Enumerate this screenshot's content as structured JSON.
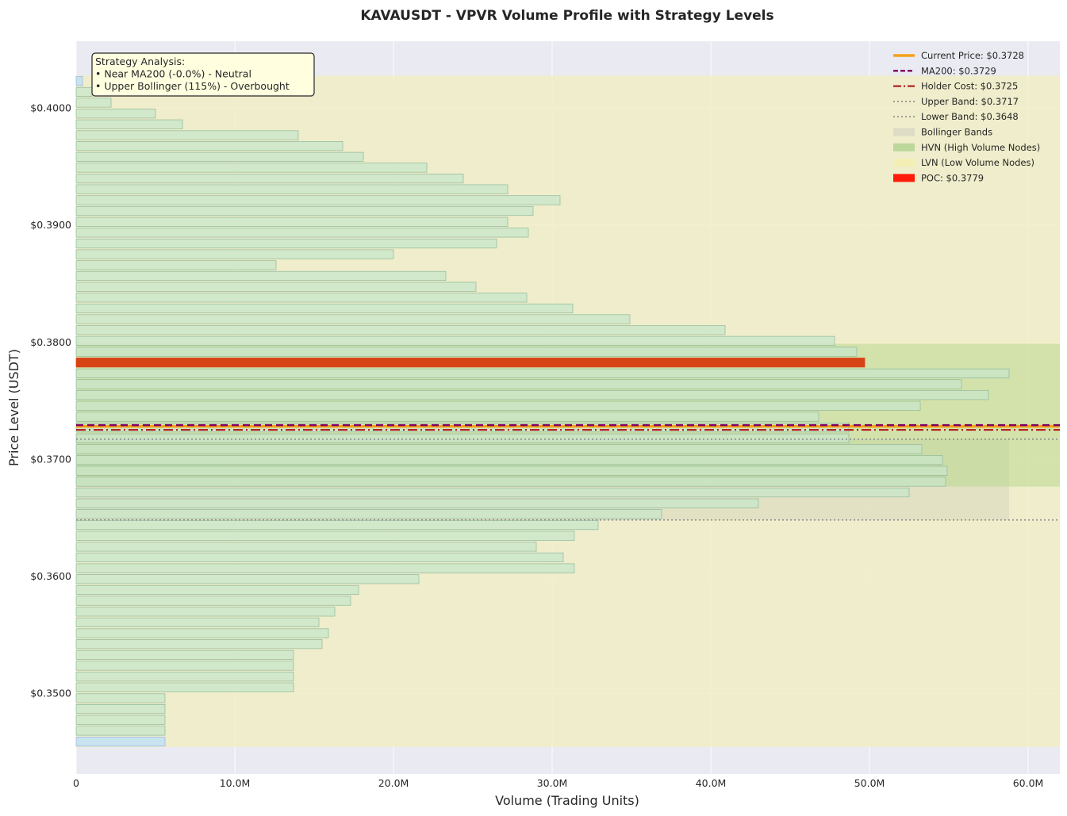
{
  "chart_data": {
    "type": "bar",
    "orientation": "horizontal",
    "title": "KAVAUSDT - VPVR Volume Profile with Strategy Levels",
    "xlabel": "Volume (Trading Units)",
    "ylabel": "Price Level (USDT)",
    "xlim": [
      0,
      62000000
    ],
    "ylim": [
      0.3431,
      0.4057
    ],
    "x_ticks": [
      0,
      10000000,
      20000000,
      30000000,
      40000000,
      50000000,
      60000000
    ],
    "x_tick_labels": [
      "0",
      "10.0M",
      "20.0M",
      "30.0M",
      "40.0M",
      "50.0M",
      "60.0M"
    ],
    "y_ticks": [
      0.35,
      0.36,
      0.37,
      0.38,
      0.39,
      0.4
    ],
    "y_tick_labels": [
      "$0.3500",
      "$0.3600",
      "$0.3700",
      "$0.3800",
      "$0.3900",
      "$0.4000"
    ],
    "grid": true,
    "legend_position": "top-right",
    "bin_height": 0.000925,
    "price_levels": [
      0.34587,
      0.3468,
      0.34772,
      0.34865,
      0.34957,
      0.3505,
      0.35142,
      0.35235,
      0.35327,
      0.3542,
      0.35512,
      0.35605,
      0.35697,
      0.3579,
      0.35882,
      0.35975,
      0.36067,
      0.3616,
      0.36252,
      0.36345,
      0.36437,
      0.3653,
      0.36622,
      0.36715,
      0.36807,
      0.369,
      0.36992,
      0.37085,
      0.37177,
      0.3727,
      0.37362,
      0.37455,
      0.37547,
      0.3764,
      0.37732,
      0.37825,
      0.37917,
      0.3801,
      0.38102,
      0.38195,
      0.38287,
      0.3838,
      0.38472,
      0.38565,
      0.38657,
      0.3875,
      0.38842,
      0.38935,
      0.39027,
      0.3912,
      0.39212,
      0.39305,
      0.39397,
      0.3949,
      0.39582,
      0.39675,
      0.39767,
      0.3986,
      0.39952,
      0.40045,
      0.40137,
      0.4023
    ],
    "volumes": [
      5600000,
      5600000,
      5600000,
      5600000,
      5600000,
      13700000,
      13700000,
      13700000,
      13700000,
      15500000,
      15900000,
      15300000,
      16300000,
      17300000,
      17800000,
      21600000,
      31400000,
      30700000,
      29000000,
      31400000,
      32900000,
      36900000,
      43000000,
      52500000,
      54800000,
      54900000,
      54600000,
      53300000,
      48700000,
      48700000,
      46800000,
      53200000,
      57500000,
      55800000,
      58800000,
      49700000,
      49200000,
      47800000,
      40900000,
      34900000,
      31300000,
      28400000,
      25200000,
      23300000,
      12600000,
      20000000,
      26500000,
      28500000,
      27200000,
      28800000,
      30500000,
      27200000,
      24400000,
      22100000,
      18100000,
      16800000,
      14000000,
      6700000,
      5000000,
      2200000,
      1000000,
      400000
    ],
    "poc": 0.3779,
    "hvn_range": [
      0.36765,
      0.37985
    ],
    "lvn_range": [
      0.34587,
      0.4023
    ],
    "levels": {
      "current_price": 0.3728,
      "ma200": 0.3729,
      "holder_cost": 0.3725,
      "upper_band": 0.3717,
      "lower_band": 0.3648
    },
    "legend": [
      "Current Price: $0.3728",
      "MA200: $0.3729",
      "Holder Cost: $0.3725",
      "Upper Band: $0.3717",
      "Lower Band: $0.3648",
      "Bollinger Bands",
      "HVN (High Volume Nodes)",
      "LVN (Low Volume Nodes)",
      "POC: $0.3779"
    ],
    "annotation": [
      "Strategy Analysis:",
      "• Near MA200 (-0.0%) - Neutral",
      "• Upper Bollinger (115%) - Overbought"
    ],
    "colors": {
      "background": "#eaeaf2",
      "bar_normal": "#c8e6c9",
      "bar_edge": "#8fb89a",
      "bar_blue": "#bbdefb",
      "lvn_zone": "#f0eec0",
      "hvn_zone": "#b9d98f",
      "bollinger": "#d9d9c0",
      "poc": "#ff1a0a",
      "current_price": "#f5a11a",
      "ma200": "#800060",
      "holder_cost": "#b22222",
      "band": "#8c8c8c"
    }
  }
}
